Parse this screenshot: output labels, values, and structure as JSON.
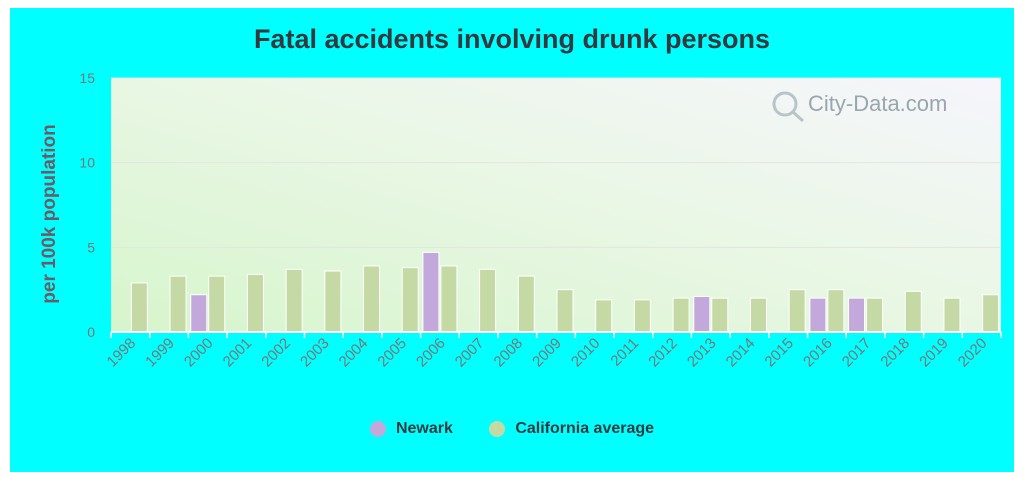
{
  "chart_data": {
    "type": "bar",
    "title": "Fatal accidents involving drunk persons",
    "ylabel": "per 100k population",
    "xlabel": "",
    "ylim": [
      0,
      15
    ],
    "yticks": [
      0,
      5,
      10,
      15
    ],
    "grid": true,
    "legend_position": "bottom",
    "watermark": "City-Data.com",
    "categories": [
      "1998",
      "1999",
      "2000",
      "2001",
      "2002",
      "2003",
      "2004",
      "2005",
      "2006",
      "2007",
      "2008",
      "2009",
      "2010",
      "2011",
      "2012",
      "2013",
      "2014",
      "2015",
      "2016",
      "2017",
      "2018",
      "2019",
      "2020"
    ],
    "series": [
      {
        "name": "Newark",
        "color": "#c3a8dc",
        "values": [
          null,
          null,
          2.2,
          null,
          null,
          null,
          null,
          null,
          4.7,
          null,
          null,
          null,
          null,
          null,
          null,
          2.1,
          null,
          null,
          2.0,
          2.0,
          null,
          null,
          null
        ]
      },
      {
        "name": "California average",
        "color": "#c5d9a5",
        "values": [
          2.9,
          3.3,
          3.3,
          3.4,
          3.7,
          3.6,
          3.9,
          3.8,
          3.9,
          3.7,
          3.3,
          2.5,
          1.9,
          1.9,
          2.0,
          2.0,
          2.0,
          2.5,
          2.5,
          2.0,
          2.4,
          2.0,
          2.2
        ]
      }
    ]
  }
}
